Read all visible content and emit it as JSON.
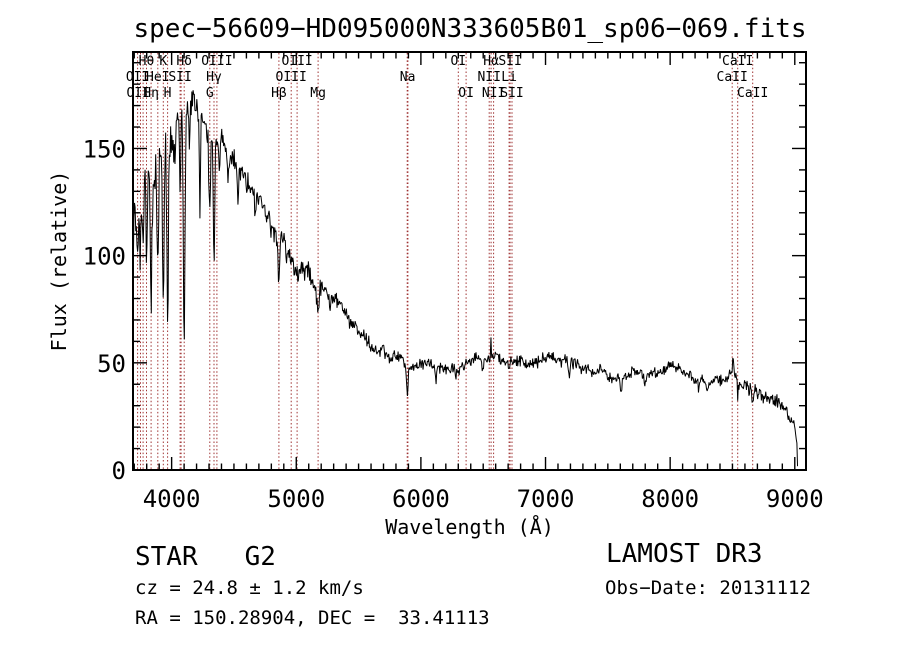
{
  "header": {
    "title": "spec−56609−HD095000N333605B01_sp06−069.fits"
  },
  "footer": {
    "left": {
      "class_line": "STAR   G2",
      "cz_line": "cz = 24.8 ± 1.2 km/s",
      "radec_line": "RA = 150.28904, DEC =  33.41113"
    },
    "right": {
      "survey_line": "LAMOST DR3",
      "obsdate_line": "Obs−Date: 20131112"
    }
  },
  "chart_data": {
    "type": "line",
    "title": "spec−56609−HD095000N333605B01_sp06−069.fits",
    "xlabel": "Wavelength (Å)",
    "ylabel": "Flux (relative)",
    "xlim": [
      3690,
      9090
    ],
    "ylim": [
      0,
      195
    ],
    "x_major_ticks": [
      4000,
      5000,
      6000,
      7000,
      8000,
      9000
    ],
    "x_minor_step": 100,
    "y_major_ticks": [
      0,
      50,
      100,
      150
    ],
    "y_minor_step": 10,
    "grid": false,
    "legend": null,
    "line_color": "#000000",
    "marker_color": "#a03434",
    "spectral_markers": [
      3727,
      3750,
      3771,
      3798,
      3835,
      3889,
      3933,
      3968,
      4068,
      4076,
      4101,
      4306,
      4340,
      4363,
      4861,
      4959,
      5007,
      5175,
      5890,
      5896,
      6300,
      6363,
      6548,
      6563,
      6583,
      6708,
      6716,
      6731,
      8498,
      8542,
      8662
    ],
    "spectral_labels": [
      {
        "text": "Hθ",
        "row": 1,
        "wavelength": 3798
      },
      {
        "text": "K",
        "row": 1,
        "wavelength": 3933
      },
      {
        "text": "Hδ",
        "row": 1,
        "wavelength": 4101
      },
      {
        "text": "OIII",
        "row": 1,
        "wavelength": 4363
      },
      {
        "text": "OIII",
        "row": 1,
        "wavelength": 5007
      },
      {
        "text": "OI",
        "row": 1,
        "wavelength": 6300
      },
      {
        "text": "Hα",
        "row": 1,
        "wavelength": 6563
      },
      {
        "text": "SII",
        "row": 1,
        "wavelength": 6716
      },
      {
        "text": "CaII",
        "row": 1,
        "wavelength": 8542
      },
      {
        "text": "OII",
        "row": 2,
        "wavelength": 3727
      },
      {
        "text": "HeI",
        "row": 2,
        "wavelength": 3889
      },
      {
        "text": "SII",
        "row": 2,
        "wavelength": 4068
      },
      {
        "text": "Hγ",
        "row": 2,
        "wavelength": 4340
      },
      {
        "text": "OIII",
        "row": 2,
        "wavelength": 4959
      },
      {
        "text": "Na",
        "row": 2,
        "wavelength": 5893
      },
      {
        "text": "NII",
        "row": 2,
        "wavelength": 6548
      },
      {
        "text": "Li",
        "row": 2,
        "wavelength": 6708
      },
      {
        "text": "CaII",
        "row": 2,
        "wavelength": 8498
      },
      {
        "text": "OII",
        "row": 3,
        "wavelength": 3732
      },
      {
        "text": "Hη",
        "row": 3,
        "wavelength": 3835
      },
      {
        "text": "H",
        "row": 3,
        "wavelength": 3968
      },
      {
        "text": "G",
        "row": 3,
        "wavelength": 4306
      },
      {
        "text": "Hβ",
        "row": 3,
        "wavelength": 4861
      },
      {
        "text": "Mg",
        "row": 3,
        "wavelength": 5175
      },
      {
        "text": "OI",
        "row": 3,
        "wavelength": 6363
      },
      {
        "text": "NII",
        "row": 3,
        "wavelength": 6583
      },
      {
        "text": "SII",
        "row": 3,
        "wavelength": 6731
      },
      {
        "text": "CaII",
        "row": 3,
        "wavelength": 8662
      }
    ],
    "spectrum": {
      "domain": [
        3692,
        9022
      ],
      "sample_step": 5,
      "seed": 20131112,
      "continuum": [
        [
          3692,
          100
        ],
        [
          3720,
          120
        ],
        [
          3755,
          130
        ],
        [
          3790,
          132
        ],
        [
          3825,
          133
        ],
        [
          3860,
          140
        ],
        [
          3895,
          148
        ],
        [
          3930,
          152
        ],
        [
          3965,
          154
        ],
        [
          4000,
          158
        ],
        [
          4050,
          162
        ],
        [
          4100,
          165
        ],
        [
          4150,
          170
        ],
        [
          4200,
          170
        ],
        [
          4250,
          165
        ],
        [
          4300,
          158
        ],
        [
          4345,
          152
        ],
        [
          4400,
          153
        ],
        [
          4450,
          150
        ],
        [
          4500,
          146
        ],
        [
          4550,
          141
        ],
        [
          4600,
          137
        ],
        [
          4650,
          131
        ],
        [
          4700,
          126
        ],
        [
          4750,
          120
        ],
        [
          4800,
          114
        ],
        [
          4861,
          110
        ],
        [
          4900,
          106
        ],
        [
          4950,
          98
        ],
        [
          5000,
          95
        ],
        [
          5050,
          93
        ],
        [
          5100,
          90
        ],
        [
          5150,
          86
        ],
        [
          5200,
          86
        ],
        [
          5250,
          83
        ],
        [
          5300,
          80
        ],
        [
          5350,
          76
        ],
        [
          5400,
          73
        ],
        [
          5450,
          69
        ],
        [
          5500,
          65
        ],
        [
          5550,
          62
        ],
        [
          5600,
          59
        ],
        [
          5650,
          56
        ],
        [
          5700,
          54
        ],
        [
          5750,
          53
        ],
        [
          5800,
          52
        ],
        [
          5850,
          51
        ],
        [
          5900,
          49
        ],
        [
          6000,
          49
        ],
        [
          6100,
          48
        ],
        [
          6200,
          48
        ],
        [
          6300,
          49
        ],
        [
          6400,
          50
        ],
        [
          6500,
          51
        ],
        [
          6563,
          52
        ],
        [
          6620,
          51
        ],
        [
          6700,
          49
        ],
        [
          6800,
          51
        ],
        [
          6900,
          52
        ],
        [
          7000,
          53
        ],
        [
          7100,
          52
        ],
        [
          7200,
          51
        ],
        [
          7300,
          48
        ],
        [
          7400,
          46
        ],
        [
          7500,
          45
        ],
        [
          7600,
          43
        ],
        [
          7700,
          45
        ],
        [
          7800,
          44
        ],
        [
          7900,
          46
        ],
        [
          8000,
          49
        ],
        [
          8100,
          45
        ],
        [
          8200,
          42
        ],
        [
          8300,
          41
        ],
        [
          8400,
          41
        ],
        [
          8500,
          43
        ],
        [
          8550,
          41
        ],
        [
          8600,
          39
        ],
        [
          8650,
          38
        ],
        [
          8700,
          37
        ],
        [
          8750,
          36
        ],
        [
          8800,
          33
        ],
        [
          8850,
          31
        ],
        [
          8900,
          28
        ],
        [
          8950,
          26
        ],
        [
          9000,
          23
        ],
        [
          9008,
          20
        ],
        [
          9016,
          10
        ],
        [
          9022,
          4
        ]
      ],
      "absorption_lines": [
        [
          3727,
          18,
          6
        ],
        [
          3750,
          28,
          5
        ],
        [
          3771,
          30,
          5
        ],
        [
          3798,
          40,
          5
        ],
        [
          3835,
          55,
          6
        ],
        [
          3889,
          50,
          6
        ],
        [
          3933,
          75,
          6
        ],
        [
          3968,
          85,
          6
        ],
        [
          4026,
          16,
          5
        ],
        [
          4068,
          30,
          5
        ],
        [
          4101,
          105,
          6
        ],
        [
          4144,
          14,
          4
        ],
        [
          4227,
          45,
          5
        ],
        [
          4306,
          30,
          7
        ],
        [
          4340,
          60,
          6
        ],
        [
          4383,
          16,
          4
        ],
        [
          4455,
          12,
          4
        ],
        [
          4531,
          12,
          5
        ],
        [
          4668,
          10,
          4
        ],
        [
          4861,
          22,
          5
        ],
        [
          4920,
          10,
          4
        ],
        [
          5015,
          8,
          4
        ],
        [
          5175,
          12,
          7
        ],
        [
          5270,
          9,
          5
        ],
        [
          5430,
          6,
          4
        ],
        [
          5892,
          12,
          6
        ],
        [
          6122,
          5,
          4
        ],
        [
          6280,
          4,
          4
        ],
        [
          6494,
          5,
          4
        ],
        [
          7190,
          5,
          7
        ],
        [
          7605,
          6,
          7
        ],
        [
          8230,
          4,
          5
        ],
        [
          8542,
          5,
          4
        ],
        [
          8662,
          5,
          4
        ]
      ],
      "emission_spikes": [
        [
          4179,
          8,
          2.5
        ],
        [
          6563,
          10,
          2.5
        ],
        [
          8504,
          12,
          2.5
        ]
      ],
      "noise_segments": [
        [
          3690,
          3830,
          15
        ],
        [
          3830,
          4060,
          13
        ],
        [
          4060,
          4300,
          9
        ],
        [
          4300,
          4700,
          7
        ],
        [
          4700,
          5150,
          6
        ],
        [
          5150,
          5650,
          5
        ],
        [
          5650,
          6500,
          4
        ],
        [
          6500,
          7300,
          4
        ],
        [
          7300,
          8450,
          3.5
        ],
        [
          8450,
          9022,
          4.5
        ]
      ]
    }
  }
}
